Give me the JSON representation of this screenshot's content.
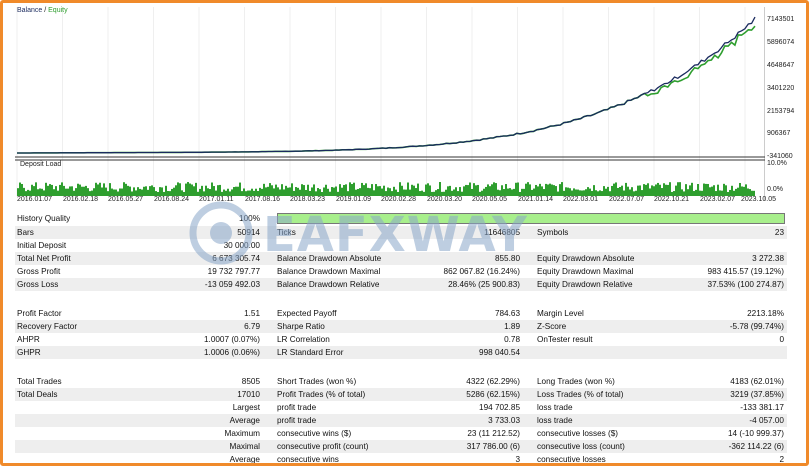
{
  "legend": {
    "balance": "Balance",
    "separator": " / ",
    "equity": "Equity"
  },
  "colors": {
    "balance": "#1a2a5e",
    "equity": "#2e9e2e",
    "border": "#f08a2a",
    "history_bar": "#a8ef8c",
    "watermark": "#8aa7c9"
  },
  "y_axis_ticks": [
    "7143501",
    "5896074",
    "4648647",
    "3401220",
    "2153794",
    "906367",
    "-341060"
  ],
  "deposit_load": {
    "label": "Deposit Load",
    "ticks": [
      "10.0%",
      "0.0%"
    ]
  },
  "x_axis_ticks": [
    "2016.01.07",
    "2016.02.18",
    "2016.05.27",
    "2016.08.24",
    "2017.01.11",
    "2017.08.16",
    "2018.03.23",
    "2019.01.09",
    "2020.02.28",
    "2020.03.20",
    "2020.05.05",
    "2021.01.14",
    "2022.03.01",
    "2022.07.07",
    "2022.10.21",
    "2023.02.07",
    "2023.10.05"
  ],
  "watermark": "EAFXWAY",
  "report": {
    "history_quality": {
      "label": "History Quality",
      "value": "100%"
    },
    "bars": {
      "label": "Bars",
      "value": "50914"
    },
    "ticks": {
      "label": "Ticks",
      "value": "11646805"
    },
    "symbols": {
      "label": "Symbols",
      "value": "23"
    },
    "initial_deposit": {
      "label": "Initial Deposit",
      "value": "30 000.00"
    },
    "total_net_profit": {
      "label": "Total Net Profit",
      "value": "6 673 305.74"
    },
    "balance_dd_abs": {
      "label": "Balance Drawdown Absolute",
      "value": "855.80"
    },
    "equity_dd_abs": {
      "label": "Equity Drawdown Absolute",
      "value": "3 272.38"
    },
    "gross_profit": {
      "label": "Gross Profit",
      "value": "19 732 797.77"
    },
    "balance_dd_max": {
      "label": "Balance Drawdown Maximal",
      "value": "862 067.82 (16.24%)"
    },
    "equity_dd_max": {
      "label": "Equity Drawdown Maximal",
      "value": "983 415.57 (19.12%)"
    },
    "gross_loss": {
      "label": "Gross Loss",
      "value": "-13 059 492.03"
    },
    "balance_dd_rel": {
      "label": "Balance Drawdown Relative",
      "value": "28.46% (25 900.83)"
    },
    "equity_dd_rel": {
      "label": "Equity Drawdown Relative",
      "value": "37.53% (100 274.87)"
    },
    "profit_factor": {
      "label": "Profit Factor",
      "value": "1.51"
    },
    "expected_payoff": {
      "label": "Expected Payoff",
      "value": "784.63"
    },
    "margin_level": {
      "label": "Margin Level",
      "value": "2213.18%"
    },
    "recovery_factor": {
      "label": "Recovery Factor",
      "value": "6.79"
    },
    "sharpe_ratio": {
      "label": "Sharpe Ratio",
      "value": "1.89"
    },
    "z_score": {
      "label": "Z-Score",
      "value": "-5.78 (99.74%)"
    },
    "ahpr": {
      "label": "AHPR",
      "value": "1.0007 (0.07%)"
    },
    "lr_correlation": {
      "label": "LR Correlation",
      "value": "0.78"
    },
    "ontester": {
      "label": "OnTester result",
      "value": "0"
    },
    "ghpr": {
      "label": "GHPR",
      "value": "1.0006 (0.06%)"
    },
    "lr_std_error": {
      "label": "LR Standard Error",
      "value": "998 040.54"
    },
    "total_trades": {
      "label": "Total Trades",
      "value": "8505"
    },
    "short_trades": {
      "label": "Short Trades (won %)",
      "value": "4322 (62.29%)"
    },
    "long_trades": {
      "label": "Long Trades (won %)",
      "value": "4183 (62.01%)"
    },
    "total_deals": {
      "label": "Total Deals",
      "value": "17010"
    },
    "profit_trades": {
      "label": "Profit Trades (% of total)",
      "value": "5286 (62.15%)"
    },
    "loss_trades": {
      "label": "Loss Trades (% of total)",
      "value": "3219 (37.85%)"
    },
    "largest": {
      "label": "Largest",
      "profit_label": "profit trade",
      "profit_value": "194 702.85",
      "loss_label": "loss trade",
      "loss_value": "-133 381.17"
    },
    "average": {
      "label": "Average",
      "profit_label": "profit trade",
      "profit_value": "3 733.03",
      "loss_label": "loss trade",
      "loss_value": "-4 057.00"
    },
    "maximum": {
      "label": "Maximum",
      "wins_label": "consecutive wins ($)",
      "wins_value": "23 (11 212.52)",
      "losses_label": "consecutive losses ($)",
      "losses_value": "14 (-10 999.37)"
    },
    "maximal": {
      "label": "Maximal",
      "profit_label": "consecutive profit (count)",
      "profit_value": "317 786.00 (6)",
      "loss_label": "consecutive loss (count)",
      "loss_value": "-362 114.22 (6)"
    },
    "average2": {
      "label": "Average",
      "wins_label": "consecutive wins",
      "wins_value": "3",
      "losses_label": "consecutive losses",
      "losses_value": "2"
    }
  }
}
